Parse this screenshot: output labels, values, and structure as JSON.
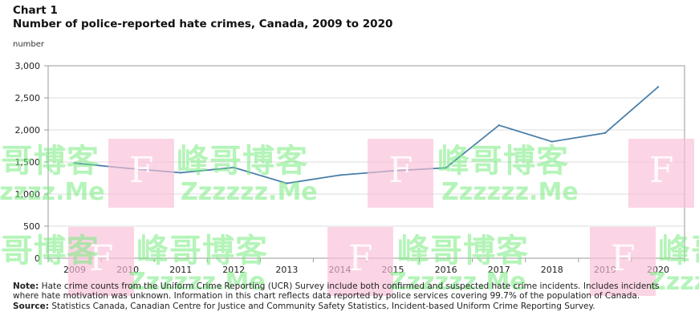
{
  "header": {
    "chart_number": "Chart 1",
    "title": "Number of police-reported hate crimes, Canada, 2009 to 2020",
    "y_unit": "number"
  },
  "chart_data": {
    "type": "line",
    "title": "Number of police-reported hate crimes, Canada, 2009 to 2020",
    "ylabel": "number",
    "xlabel": "",
    "categories": [
      "2009",
      "2010",
      "2011",
      "2012",
      "2013",
      "2014",
      "2015",
      "2016",
      "2017",
      "2018",
      "2019",
      "2020"
    ],
    "series": [
      {
        "values": [
          1482,
          1401,
          1332,
          1414,
          1167,
          1295,
          1362,
          1409,
          2073,
          1817,
          1951,
          2669
        ]
      }
    ],
    "ylim": [
      0,
      3000
    ],
    "yticks": [
      0,
      500,
      1000,
      1500,
      2000,
      2500,
      3000
    ],
    "ytick_labels": [
      "0",
      "500",
      "1,000",
      "1,500",
      "2,000",
      "2,500",
      "3,000"
    ],
    "grid": true,
    "line_color": "#4a7fa8"
  },
  "watermark": {
    "letter": "F",
    "cn_text": "峰哥博客",
    "en_text": "Zzzzzz.Me"
  },
  "footer": {
    "note_label": "Note:",
    "note_text": " Hate crime counts from the Uniform Crime Reporting (UCR) Survey include both confirmed and suspected hate crime incidents. Includes incidents where hate motivation was unknown. Information in this chart reflects data reported by police services covering 99.7% of the population of Canada.",
    "source_label": "Source:",
    "source_text": " Statistics Canada, Canadian Centre for Justice and Community Safety Statistics, Incident-based Uniform Crime Reporting Survey."
  }
}
